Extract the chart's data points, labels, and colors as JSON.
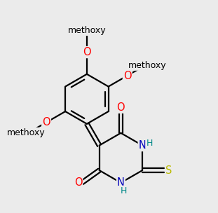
{
  "background_color": "#ebebeb",
  "bond_color": "#000000",
  "atom_colors": {
    "O": "#ff0000",
    "N": "#0000bb",
    "S": "#bbbb00",
    "H_N": "#008888",
    "C": "#000000"
  },
  "bond_lw": 1.6,
  "font_size_atom": 10.5,
  "font_size_small": 9.0
}
